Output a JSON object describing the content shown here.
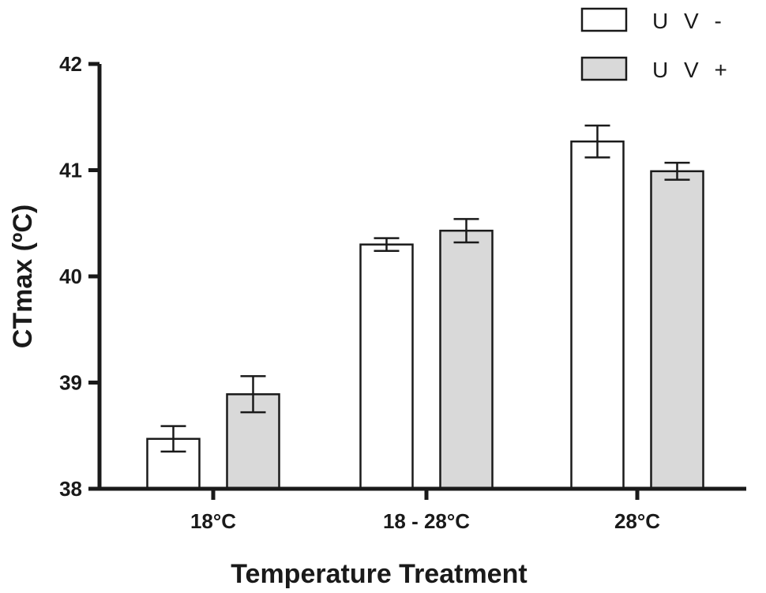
{
  "chart_data": {
    "type": "bar",
    "title": "",
    "xlabel": "Temperature Treatment",
    "ylabel": "CTmax (ºC)",
    "ylim": [
      38,
      42
    ],
    "yticks": [
      38,
      39,
      40,
      41,
      42
    ],
    "categories": [
      "18°C",
      "18 - 28°C",
      "28°C"
    ],
    "series": [
      {
        "name": "U V -",
        "color": "#ffffff",
        "values": [
          38.47,
          40.3,
          41.27
        ],
        "errors": [
          0.12,
          0.06,
          0.15
        ]
      },
      {
        "name": "U V +",
        "color": "#d9d9d9",
        "values": [
          38.89,
          40.43,
          40.99
        ],
        "errors": [
          0.17,
          0.11,
          0.08
        ]
      }
    ],
    "legend_position": "top-right",
    "grid": false
  }
}
